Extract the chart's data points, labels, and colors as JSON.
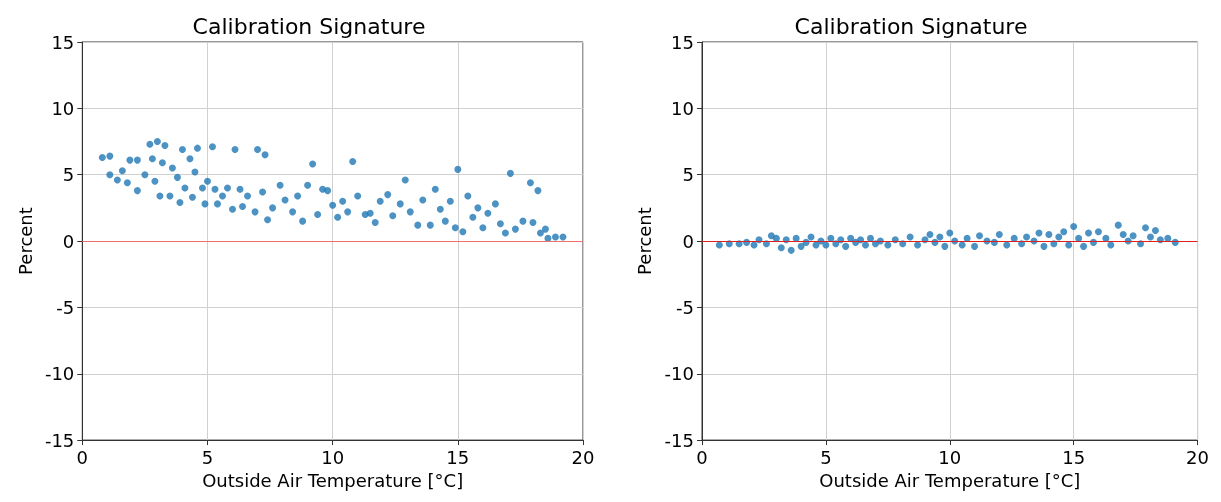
{
  "chart_data": [
    {
      "type": "scatter",
      "title": "Calibration Signature",
      "xlabel": "Outside Air Temperature [°C]",
      "ylabel": "Percent",
      "xlim": [
        0,
        20
      ],
      "ylim": [
        -15,
        15
      ],
      "xticks": [
        0,
        5,
        10,
        15,
        20
      ],
      "yticks": [
        -15,
        -10,
        -5,
        0,
        5,
        10,
        15
      ],
      "grid": true,
      "marker": "circle",
      "ref_lines": [
        {
          "axis": "y",
          "value": 0,
          "color": "#f07070"
        }
      ],
      "series": [
        {
          "color": "#1f77b4",
          "x": [
            0.8,
            1.1,
            1.1,
            1.4,
            1.6,
            1.8,
            1.9,
            2.2,
            2.2,
            2.5,
            2.7,
            2.8,
            2.9,
            3.0,
            3.1,
            3.2,
            3.3,
            3.5,
            3.6,
            3.8,
            3.9,
            4.0,
            4.1,
            4.3,
            4.4,
            4.5,
            4.6,
            4.8,
            4.9,
            5.0,
            5.2,
            5.3,
            5.4,
            5.6,
            5.8,
            6.0,
            6.1,
            6.3,
            6.4,
            6.6,
            6.9,
            7.0,
            7.2,
            7.3,
            7.4,
            7.6,
            7.9,
            8.1,
            8.4,
            8.6,
            8.8,
            9.0,
            9.2,
            9.4,
            9.6,
            9.8,
            10.0,
            10.2,
            10.4,
            10.6,
            10.8,
            11.0,
            11.3,
            11.5,
            11.7,
            11.9,
            12.2,
            12.4,
            12.7,
            12.9,
            13.1,
            13.4,
            13.6,
            13.9,
            14.1,
            14.3,
            14.5,
            14.7,
            14.9,
            15.0,
            15.2,
            15.4,
            15.6,
            15.8,
            16.0,
            16.2,
            16.5,
            16.7,
            16.9,
            17.1,
            17.3,
            17.6,
            17.9,
            18.0,
            18.2,
            18.3,
            18.5,
            18.6,
            18.9,
            19.2
          ],
          "values": [
            6.3,
            6.4,
            5.0,
            4.6,
            5.3,
            4.4,
            6.1,
            6.1,
            3.8,
            5.0,
            7.3,
            6.2,
            4.5,
            7.5,
            3.4,
            5.9,
            7.2,
            3.4,
            5.5,
            4.8,
            2.9,
            6.9,
            4.0,
            6.2,
            3.3,
            5.2,
            7.0,
            4.0,
            2.8,
            4.5,
            7.1,
            3.9,
            2.8,
            3.4,
            4.0,
            2.4,
            6.9,
            3.9,
            2.6,
            3.4,
            2.2,
            6.9,
            3.7,
            6.5,
            1.6,
            2.5,
            4.2,
            3.1,
            2.2,
            3.4,
            1.5,
            4.2,
            5.8,
            2.0,
            3.9,
            3.8,
            2.7,
            1.8,
            3.0,
            2.2,
            6.0,
            3.4,
            2.0,
            2.1,
            1.4,
            3.0,
            3.5,
            1.9,
            2.8,
            4.6,
            2.2,
            1.2,
            3.1,
            1.2,
            3.9,
            2.4,
            1.5,
            3.0,
            1.0,
            5.4,
            0.7,
            3.4,
            1.8,
            2.5,
            1.0,
            2.1,
            2.8,
            1.3,
            0.6,
            5.1,
            0.9,
            1.5,
            4.4,
            1.4,
            3.8,
            0.6,
            0.9,
            0.2,
            0.3,
            0.3
          ]
        }
      ]
    },
    {
      "type": "scatter",
      "title": "Calibration Signature",
      "xlabel": "Outside Air Temperature [°C]",
      "ylabel": "Percent",
      "xlim": [
        0,
        20
      ],
      "ylim": [
        -15,
        15
      ],
      "xticks": [
        0,
        5,
        10,
        15,
        20
      ],
      "yticks": [
        -15,
        -10,
        -5,
        0,
        5,
        10,
        15
      ],
      "grid": true,
      "marker": "circle",
      "ref_lines": [
        {
          "axis": "y",
          "value": 0,
          "color": "#e02020"
        }
      ],
      "series": [
        {
          "color": "#1f77b4",
          "x": [
            0.7,
            1.1,
            1.5,
            1.8,
            2.1,
            2.3,
            2.6,
            2.8,
            3.0,
            3.2,
            3.4,
            3.6,
            3.8,
            4.0,
            4.2,
            4.4,
            4.6,
            4.8,
            5.0,
            5.2,
            5.4,
            5.6,
            5.8,
            6.0,
            6.2,
            6.4,
            6.6,
            6.8,
            7.0,
            7.2,
            7.5,
            7.8,
            8.1,
            8.4,
            8.7,
            9.0,
            9.2,
            9.4,
            9.6,
            9.8,
            10.0,
            10.2,
            10.5,
            10.7,
            11.0,
            11.2,
            11.5,
            11.8,
            12.0,
            12.3,
            12.6,
            12.9,
            13.1,
            13.4,
            13.6,
            13.8,
            14.0,
            14.2,
            14.4,
            14.6,
            14.8,
            15.0,
            15.2,
            15.4,
            15.6,
            15.8,
            16.0,
            16.3,
            16.5,
            16.8,
            17.0,
            17.2,
            17.4,
            17.7,
            17.9,
            18.1,
            18.3,
            18.5,
            18.8,
            19.1
          ],
          "values": [
            -0.3,
            -0.2,
            -0.2,
            -0.1,
            -0.3,
            0.1,
            -0.2,
            0.4,
            0.2,
            -0.5,
            0.1,
            -0.7,
            0.2,
            -0.4,
            -0.1,
            0.3,
            -0.3,
            0.0,
            -0.3,
            0.2,
            -0.2,
            0.1,
            -0.4,
            0.2,
            -0.1,
            0.1,
            -0.3,
            0.2,
            -0.2,
            0.0,
            -0.3,
            0.1,
            -0.2,
            0.3,
            -0.3,
            0.1,
            0.5,
            -0.1,
            0.3,
            -0.4,
            0.6,
            0.0,
            -0.3,
            0.2,
            -0.4,
            0.4,
            0.0,
            -0.1,
            0.5,
            -0.3,
            0.2,
            -0.2,
            0.3,
            0.0,
            0.6,
            -0.4,
            0.5,
            -0.2,
            0.3,
            0.7,
            -0.3,
            1.1,
            0.2,
            -0.4,
            0.6,
            -0.1,
            0.7,
            0.2,
            -0.3,
            1.2,
            0.5,
            0.0,
            0.4,
            -0.2,
            1.0,
            0.3,
            0.8,
            0.1,
            0.2,
            -0.1
          ]
        }
      ]
    }
  ]
}
